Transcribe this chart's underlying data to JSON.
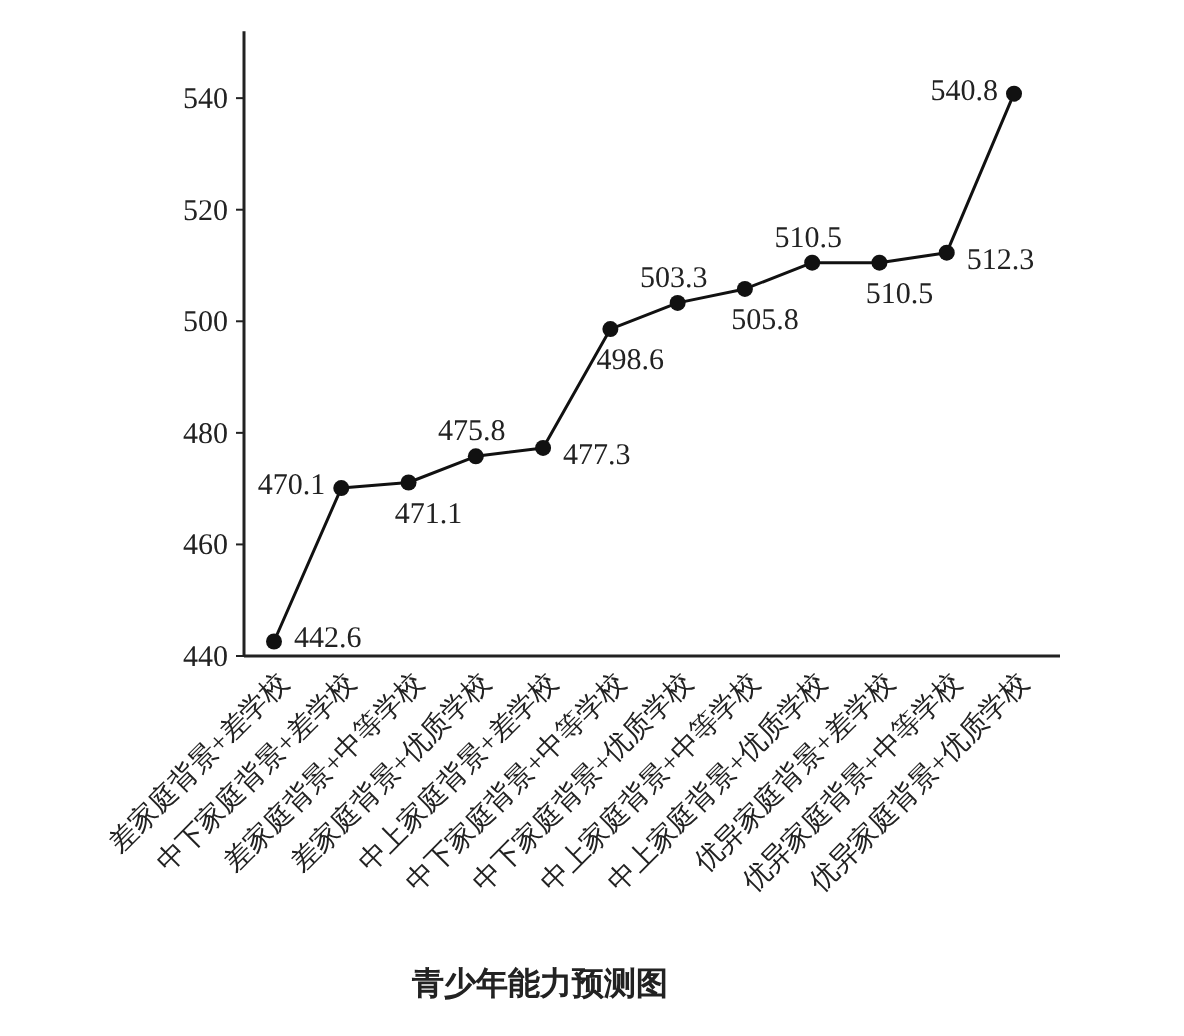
{
  "chart_data": {
    "type": "line",
    "title": "青少年能力预测图",
    "categories": [
      "差家庭背景+差学校",
      "中下家庭背景+差学校",
      "差家庭背景+中等学校",
      "差家庭背景+优质学校",
      "中上家庭背景+差学校",
      "中下家庭背景+中等学校",
      "中下家庭背景+优质学校",
      "中上家庭背景+中等学校",
      "中上家庭背景+优质学校",
      "优异家庭背景+差学校",
      "优异家庭背景+中等学校",
      "优异家庭背景+优质学校"
    ],
    "series": [
      {
        "color": "#111111",
        "values": [
          442.6,
          470.1,
          471.1,
          475.8,
          477.3,
          498.6,
          503.3,
          505.8,
          510.5,
          510.5,
          512.3,
          540.8
        ]
      }
    ],
    "ylim": [
      440,
      552
    ],
    "yticks": [
      440,
      460,
      480,
      500,
      520,
      540
    ],
    "marker": "circle",
    "line_style": "solid",
    "data_labels": true
  }
}
